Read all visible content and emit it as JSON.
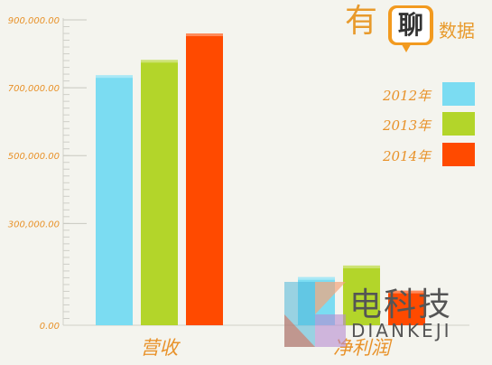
{
  "chart_data": {
    "type": "bar",
    "categories": [
      "营收",
      "净利润"
    ],
    "series": [
      {
        "name": "2012年",
        "values": [
          737000,
          142000
        ],
        "color": "#7bdcf2"
      },
      {
        "name": "2013年",
        "values": [
          782000,
          176000
        ],
        "color": "#b3d52a"
      },
      {
        "name": "2014年",
        "values": [
          860000,
          102000
        ],
        "color": "#ff4a00"
      }
    ],
    "y_ticks": [
      "0.00",
      "300,000.00",
      "500,000.00",
      "700,000.00",
      "900,000.00"
    ],
    "y_tick_values": [
      0,
      300000,
      500000,
      700000,
      900000
    ],
    "ylim": [
      0,
      900000
    ],
    "legend_position": "right",
    "grid": false
  },
  "brand": {
    "char_you": "有",
    "char_liao": "聊",
    "text_shuju": "数据"
  },
  "watermark": {
    "cn": "电科技",
    "en": "DIANKEJI"
  }
}
